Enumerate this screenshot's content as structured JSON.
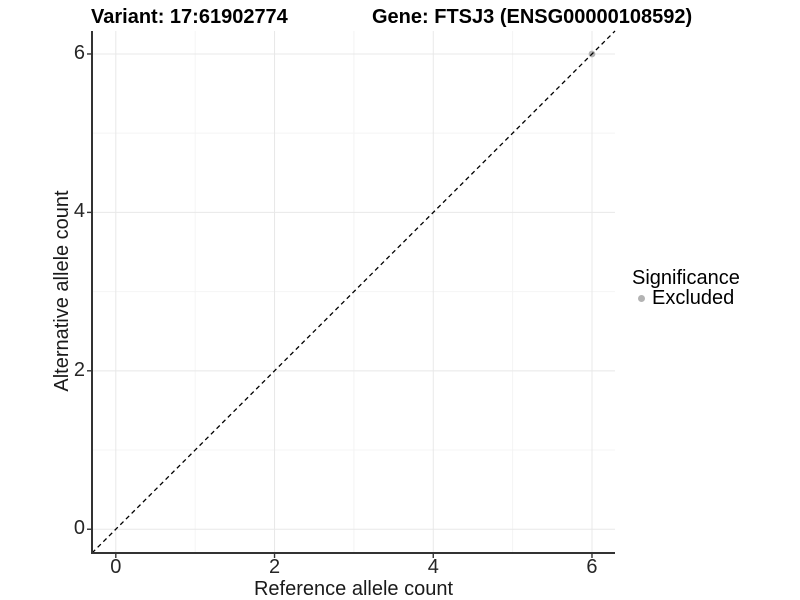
{
  "chart_data": {
    "type": "scatter",
    "title_left": "Variant: 17:61902774",
    "title_right": "Gene: FTSJ3 (ENSG00000108592)",
    "xlabel": "Reference allele count",
    "ylabel": "Alternative allele count",
    "xlim": [
      -0.3,
      6.29
    ],
    "ylim": [
      -0.3,
      6.29
    ],
    "x_ticks": [
      0,
      2,
      4,
      6
    ],
    "y_ticks": [
      0,
      2,
      4,
      6
    ],
    "x_minor_ticks": [
      1,
      3,
      5
    ],
    "y_minor_ticks": [
      1,
      3,
      5
    ],
    "grid": "major+minor",
    "identity_line": {
      "style": "dashed",
      "from": [
        -0.3,
        -0.3
      ],
      "to": [
        6.29,
        6.29
      ],
      "color": "#000000"
    },
    "series": [
      {
        "name": "Excluded",
        "color": "#b3b3b3",
        "points": [
          [
            6,
            6
          ]
        ]
      }
    ],
    "legend": {
      "title": "Significance",
      "position": "right",
      "items": [
        {
          "label": "Excluded",
          "color": "#b3b3b3"
        }
      ]
    },
    "colors": {
      "axis": "#333333",
      "tick": "#333333",
      "grid_major": "#e8e8e8",
      "grid_minor": "#f4f4f4",
      "point": "#b3b3b3",
      "background": "#ffffff"
    }
  }
}
